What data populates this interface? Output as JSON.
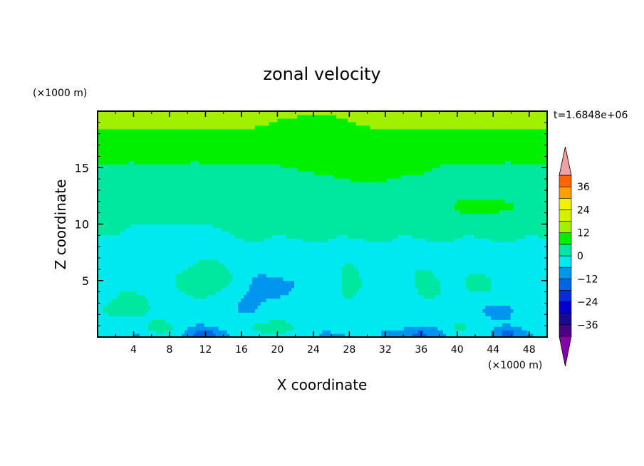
{
  "chart_data": {
    "type": "heatmap",
    "title": "zonal velocity",
    "xlabel": "X coordinate",
    "ylabel": "Z coordinate",
    "x_unit": "(×1000 m)",
    "y_unit": "(×1000 m)",
    "time_label": "t=1.6848e+06",
    "xlim": [
      0,
      50
    ],
    "ylim": [
      0,
      20
    ],
    "x_ticks": [
      4,
      8,
      12,
      16,
      20,
      24,
      28,
      32,
      36,
      40,
      44,
      48
    ],
    "y_ticks": [
      5,
      10,
      15
    ],
    "colorbar": {
      "levels": [
        -42,
        -36,
        -30,
        -24,
        -18,
        -12,
        -6,
        0,
        6,
        12,
        18,
        24,
        30,
        36,
        42
      ],
      "tick_labels": [
        "36",
        "24",
        "12",
        "0",
        "−12",
        "−24",
        "−36"
      ],
      "tick_values": [
        36,
        24,
        12,
        0,
        -12,
        -24,
        -36
      ],
      "colors": [
        "#4b0082",
        "#1a0a8c",
        "#0000c8",
        "#0a2bdc",
        "#0064e6",
        "#0096f0",
        "#00e8f0",
        "#00e8a0",
        "#00f000",
        "#a0f000",
        "#d2f000",
        "#f0f000",
        "#ffa000",
        "#ff6400",
        "#ff1e00",
        "#e60000"
      ],
      "under_color": "#8800aa",
      "over_color": "#f0a0a0"
    },
    "fields": {
      "base_profile": [
        {
          "z": 0,
          "u": -6
        },
        {
          "z": 1,
          "u": -4
        },
        {
          "z": 3,
          "u": -4
        },
        {
          "z": 6,
          "u": -3
        },
        {
          "z": 8,
          "u": -1
        },
        {
          "z": 10,
          "u": 2
        },
        {
          "z": 12,
          "u": 3
        },
        {
          "z": 14,
          "u": 4
        },
        {
          "z": 16,
          "u": 7
        },
        {
          "z": 17,
          "u": 9
        },
        {
          "z": 18,
          "u": 11
        },
        {
          "z": 19,
          "u": 13
        },
        {
          "z": 20,
          "u": 13
        }
      ],
      "features": [
        {
          "x": 12,
          "z": 5,
          "rx": 3,
          "rz": 1.5,
          "amp": 9
        },
        {
          "x": 4,
          "z": 3,
          "rx": 3,
          "rz": 1.5,
          "amp": 5
        },
        {
          "x": 2,
          "z": 2.5,
          "rx": 2,
          "rz": 0.8,
          "amp": 5
        },
        {
          "x": 17.5,
          "z": 4,
          "rx": 2.5,
          "rz": 2,
          "amp": -4
        },
        {
          "x": 22,
          "z": 5,
          "rx": 2.5,
          "rz": 1.2,
          "amp": -3
        },
        {
          "x": 28,
          "z": 4.5,
          "rx": 1.5,
          "rz": 2,
          "amp": 6
        },
        {
          "x": 36.5,
          "z": 4.5,
          "rx": 2,
          "rz": 2,
          "amp": 5
        },
        {
          "x": 42,
          "z": 4.5,
          "rx": 2.5,
          "rz": 1.5,
          "amp": 5
        },
        {
          "x": 45,
          "z": 2.5,
          "rx": 3,
          "rz": 1,
          "amp": -3
        },
        {
          "x": 12,
          "z": 0.3,
          "rx": 2,
          "rz": 0.6,
          "amp": -9
        },
        {
          "x": 36,
          "z": 0.3,
          "rx": 2,
          "rz": 0.6,
          "amp": -9
        },
        {
          "x": 45.5,
          "z": 0.3,
          "rx": 1.5,
          "rz": 0.5,
          "amp": -8
        },
        {
          "x": 19,
          "z": 0.8,
          "rx": 3,
          "rz": 0.8,
          "amp": 8
        },
        {
          "x": 7,
          "z": 0.8,
          "rx": 2,
          "rz": 0.7,
          "amp": 6
        },
        {
          "x": 40,
          "z": 0.8,
          "rx": 1.5,
          "rz": 0.7,
          "amp": 6
        },
        {
          "x": 24,
          "z": 18.5,
          "rx": 4,
          "rz": 1,
          "amp": -4
        },
        {
          "x": 43,
          "z": 11.5,
          "rx": 5,
          "rz": 1,
          "amp": 5
        },
        {
          "x": 30,
          "z": 14.5,
          "rx": 6,
          "rz": 1.2,
          "amp": 3
        },
        {
          "x": 8,
          "z": 9.5,
          "rx": 6,
          "rz": 1,
          "amp": -3
        }
      ]
    }
  }
}
